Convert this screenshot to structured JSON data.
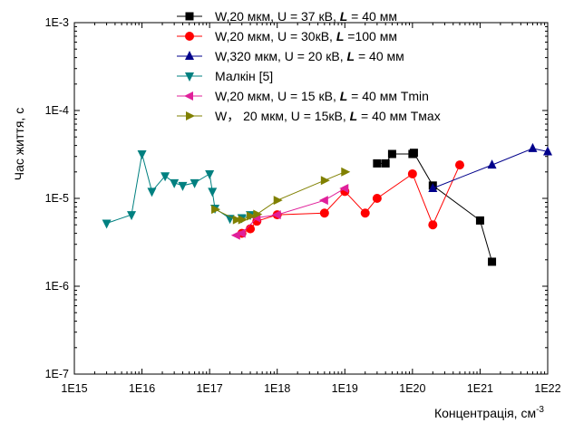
{
  "chart_data": {
    "type": "scatter",
    "x_scale": "log",
    "y_scale": "log",
    "xlim": [
      1000000000000000.0,
      1e+22
    ],
    "ylim": [
      1e-07,
      0.001
    ],
    "xlabel": "Концентрація, см",
    "xlabel_sup": "-3",
    "ylabel": "Час життя, с",
    "x_tick_labels": [
      "1E15",
      "1E16",
      "1E17",
      "1E18",
      "1E19",
      "1E20",
      "1E21",
      "1E22"
    ],
    "y_tick_labels": [
      "1E-7",
      "1E-6",
      "1E-5",
      "1E-4",
      "1E-3"
    ],
    "grid": false,
    "legend_position": "top-right",
    "series": [
      {
        "legend": [
          "W,20 мкм, U = 37 кВ, ",
          "L",
          " = 40 мм"
        ],
        "color": "#000000",
        "marker": "square",
        "points": [
          [
            3e+19,
            2.5e-05
          ],
          [
            4e+19,
            2.5e-05
          ],
          [
            5e+19,
            3.2e-05
          ],
          [
            1e+20,
            3.2e-05
          ],
          [
            1.05e+20,
            3.3e-05
          ],
          [
            2e+20,
            1.4e-05
          ],
          [
            1e+21,
            5.6e-06
          ],
          [
            1.5e+21,
            1.9e-06
          ]
        ]
      },
      {
        "legend": [
          "W,20 мкм, U = 30кВ, ",
          "L",
          " =100 мм"
        ],
        "color": "#ff0000",
        "marker": "circle",
        "points": [
          [
            3e+17,
            4e-06
          ],
          [
            4e+17,
            4.5e-06
          ],
          [
            5e+17,
            5.5e-06
          ],
          [
            1e+18,
            6.5e-06
          ],
          [
            5e+18,
            6.8e-06
          ],
          [
            1e+19,
            1.2e-05
          ],
          [
            2e+19,
            6.8e-06
          ],
          [
            3e+19,
            1e-05
          ],
          [
            1e+20,
            1.9e-05
          ],
          [
            2e+20,
            5e-06
          ],
          [
            5e+20,
            2.4e-05
          ]
        ]
      },
      {
        "legend": [
          "W,320 мкм, U = 20 кВ, ",
          "L",
          " = 40 мм"
        ],
        "color": "#00008b",
        "marker": "triangle-up",
        "points": [
          [
            2e+20,
            1.3e-05
          ],
          [
            1.5e+21,
            2.4e-05
          ],
          [
            6e+21,
            3.7e-05
          ],
          [
            1e+22,
            3.4e-05
          ]
        ]
      },
      {
        "legend": [
          "Малкін [5]"
        ],
        "color": "#008080",
        "marker": "triangle-down",
        "points": [
          [
            3000000000000000.0,
            5.2e-06
          ],
          [
            7000000000000000.0,
            6.5e-06
          ],
          [
            1e+16,
            3.2e-05
          ],
          [
            1.4e+16,
            1.2e-05
          ],
          [
            2.2e+16,
            1.8e-05
          ],
          [
            3e+16,
            1.5e-05
          ],
          [
            4e+16,
            1.4e-05
          ],
          [
            6e+16,
            1.5e-05
          ],
          [
            1e+17,
            1.9e-05
          ],
          [
            1.1e+17,
            1.2e-05
          ],
          [
            1.2e+17,
            7.7e-06
          ],
          [
            2e+17,
            5.9e-06
          ],
          [
            3e+17,
            6e-06
          ],
          [
            4e+17,
            6.5e-06
          ]
        ]
      },
      {
        "legend": [
          "W,20 мкм, U = 15 кВ, ",
          "L",
          " = 40 мм Tmin"
        ],
        "color": "#e0209a",
        "marker": "triangle-left",
        "points": [
          [
            2.5e+17,
            3.8e-06
          ],
          [
            3e+17,
            4e-06
          ],
          [
            5e+17,
            6e-06
          ],
          [
            1e+18,
            6.5e-06
          ],
          [
            5e+18,
            9.5e-06
          ],
          [
            1e+19,
            1.3e-05
          ]
        ]
      },
      {
        "legend": [
          "W， 20 мкм, U = 15кВ, ",
          "L",
          " = 40 мм Tмах"
        ],
        "color": "#808000",
        "marker": "triangle-right",
        "points": [
          [
            1.2e+17,
            7.5e-06
          ],
          [
            2.5e+17,
            5.7e-06
          ],
          [
            3e+17,
            5.7e-06
          ],
          [
            4e+17,
            6.3e-06
          ],
          [
            5e+17,
            6.6e-06
          ],
          [
            1e+18,
            9.5e-06
          ],
          [
            5e+18,
            1.6e-05
          ],
          [
            1e+19,
            2e-05
          ]
        ]
      }
    ]
  }
}
